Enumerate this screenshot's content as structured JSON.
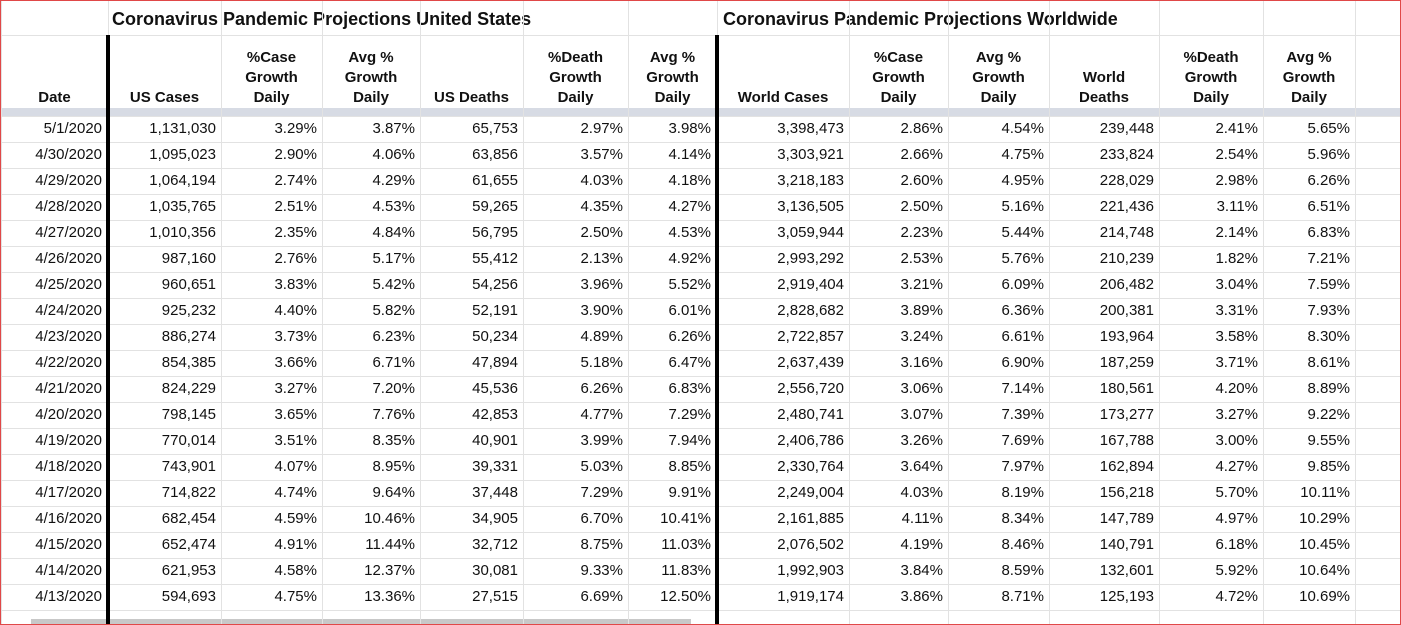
{
  "header": {
    "us_title": "Coronavirus Pandemic Projections United States",
    "world_title": "Coronavirus Pandemic Projections Worldwide"
  },
  "columns": [
    [
      "Date"
    ],
    [
      "US Cases"
    ],
    [
      "%Case",
      "Growth",
      "Daily"
    ],
    [
      "Avg %",
      "Growth",
      "Daily"
    ],
    [
      "US Deaths"
    ],
    [
      "%Death",
      "Growth",
      "Daily"
    ],
    [
      "Avg %",
      "Growth",
      "Daily"
    ],
    [
      "World Cases"
    ],
    [
      "%Case",
      "Growth",
      "Daily"
    ],
    [
      "Avg %",
      "Growth",
      "Daily"
    ],
    [
      "World",
      "Deaths"
    ],
    [
      "%Death",
      "Growth",
      "Daily"
    ],
    [
      "Avg %",
      "Growth",
      "Daily"
    ]
  ],
  "rows": [
    [
      "5/1/2020",
      "1,131,030",
      "3.29%",
      "3.87%",
      "65,753",
      "2.97%",
      "3.98%",
      "3,398,473",
      "2.86%",
      "4.54%",
      "239,448",
      "2.41%",
      "5.65%"
    ],
    [
      "4/30/2020",
      "1,095,023",
      "2.90%",
      "4.06%",
      "63,856",
      "3.57%",
      "4.14%",
      "3,303,921",
      "2.66%",
      "4.75%",
      "233,824",
      "2.54%",
      "5.96%"
    ],
    [
      "4/29/2020",
      "1,064,194",
      "2.74%",
      "4.29%",
      "61,655",
      "4.03%",
      "4.18%",
      "3,218,183",
      "2.60%",
      "4.95%",
      "228,029",
      "2.98%",
      "6.26%"
    ],
    [
      "4/28/2020",
      "1,035,765",
      "2.51%",
      "4.53%",
      "59,265",
      "4.35%",
      "4.27%",
      "3,136,505",
      "2.50%",
      "5.16%",
      "221,436",
      "3.11%",
      "6.51%"
    ],
    [
      "4/27/2020",
      "1,010,356",
      "2.35%",
      "4.84%",
      "56,795",
      "2.50%",
      "4.53%",
      "3,059,944",
      "2.23%",
      "5.44%",
      "214,748",
      "2.14%",
      "6.83%"
    ],
    [
      "4/26/2020",
      "987,160",
      "2.76%",
      "5.17%",
      "55,412",
      "2.13%",
      "4.92%",
      "2,993,292",
      "2.53%",
      "5.76%",
      "210,239",
      "1.82%",
      "7.21%"
    ],
    [
      "4/25/2020",
      "960,651",
      "3.83%",
      "5.42%",
      "54,256",
      "3.96%",
      "5.52%",
      "2,919,404",
      "3.21%",
      "6.09%",
      "206,482",
      "3.04%",
      "7.59%"
    ],
    [
      "4/24/2020",
      "925,232",
      "4.40%",
      "5.82%",
      "52,191",
      "3.90%",
      "6.01%",
      "2,828,682",
      "3.89%",
      "6.36%",
      "200,381",
      "3.31%",
      "7.93%"
    ],
    [
      "4/23/2020",
      "886,274",
      "3.73%",
      "6.23%",
      "50,234",
      "4.89%",
      "6.26%",
      "2,722,857",
      "3.24%",
      "6.61%",
      "193,964",
      "3.58%",
      "8.30%"
    ],
    [
      "4/22/2020",
      "854,385",
      "3.66%",
      "6.71%",
      "47,894",
      "5.18%",
      "6.47%",
      "2,637,439",
      "3.16%",
      "6.90%",
      "187,259",
      "3.71%",
      "8.61%"
    ],
    [
      "4/21/2020",
      "824,229",
      "3.27%",
      "7.20%",
      "45,536",
      "6.26%",
      "6.83%",
      "2,556,720",
      "3.06%",
      "7.14%",
      "180,561",
      "4.20%",
      "8.89%"
    ],
    [
      "4/20/2020",
      "798,145",
      "3.65%",
      "7.76%",
      "42,853",
      "4.77%",
      "7.29%",
      "2,480,741",
      "3.07%",
      "7.39%",
      "173,277",
      "3.27%",
      "9.22%"
    ],
    [
      "4/19/2020",
      "770,014",
      "3.51%",
      "8.35%",
      "40,901",
      "3.99%",
      "7.94%",
      "2,406,786",
      "3.26%",
      "7.69%",
      "167,788",
      "3.00%",
      "9.55%"
    ],
    [
      "4/18/2020",
      "743,901",
      "4.07%",
      "8.95%",
      "39,331",
      "5.03%",
      "8.85%",
      "2,330,764",
      "3.64%",
      "7.97%",
      "162,894",
      "4.27%",
      "9.85%"
    ],
    [
      "4/17/2020",
      "714,822",
      "4.74%",
      "9.64%",
      "37,448",
      "7.29%",
      "9.91%",
      "2,249,004",
      "4.03%",
      "8.19%",
      "156,218",
      "5.70%",
      "10.11%"
    ],
    [
      "4/16/2020",
      "682,454",
      "4.59%",
      "10.46%",
      "34,905",
      "6.70%",
      "10.41%",
      "2,161,885",
      "4.11%",
      "8.34%",
      "147,789",
      "4.97%",
      "10.29%"
    ],
    [
      "4/15/2020",
      "652,474",
      "4.91%",
      "11.44%",
      "32,712",
      "8.75%",
      "11.03%",
      "2,076,502",
      "4.19%",
      "8.46%",
      "140,791",
      "6.18%",
      "10.45%"
    ],
    [
      "4/14/2020",
      "621,953",
      "4.58%",
      "12.37%",
      "30,081",
      "9.33%",
      "11.83%",
      "1,992,903",
      "3.84%",
      "8.59%",
      "132,601",
      "5.92%",
      "10.64%"
    ],
    [
      "4/13/2020",
      "594,693",
      "4.75%",
      "13.36%",
      "27,515",
      "6.69%",
      "12.50%",
      "1,919,174",
      "3.86%",
      "8.71%",
      "125,193",
      "4.72%",
      "10.69%"
    ]
  ]
}
